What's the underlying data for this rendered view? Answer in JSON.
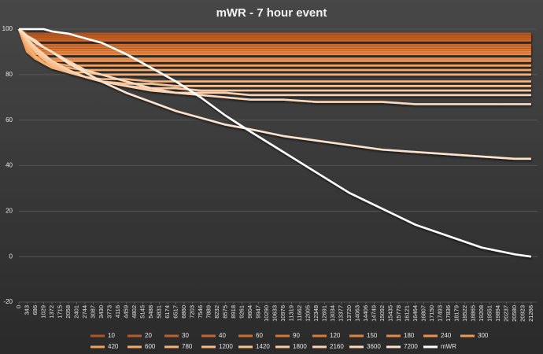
{
  "chart_data": {
    "type": "line",
    "title": "mWR - 7 hour event",
    "x": [
      0,
      343,
      686,
      1029,
      1372,
      2058,
      2744,
      3430,
      4459,
      5488,
      6517,
      7546,
      8575,
      9604,
      10976,
      12348,
      13720,
      15092,
      16464,
      17836,
      19208,
      20580,
      21266
    ],
    "xlim": [
      0,
      21530
    ],
    "xticks": [
      0,
      343,
      686,
      1029,
      1372,
      1715,
      2058,
      2401,
      2744,
      3087,
      3430,
      3773,
      4116,
      4459,
      4802,
      5145,
      5488,
      5831,
      6174,
      6517,
      6860,
      7203,
      7546,
      7889,
      8232,
      8575,
      8918,
      9261,
      9604,
      9947,
      10290,
      10633,
      10976,
      11319,
      11662,
      12005,
      12348,
      12691,
      13034,
      13377,
      13720,
      14063,
      14406,
      14749,
      15092,
      15435,
      15778,
      16121,
      16464,
      16807,
      17150,
      17493,
      17836,
      18179,
      18522,
      18865,
      19208,
      19551,
      19894,
      20237,
      20580,
      20923,
      21266
    ],
    "ylim": [
      -20,
      100
    ],
    "yticks": [
      -20,
      0,
      20,
      40,
      60,
      80,
      100
    ],
    "grid": true,
    "legend": "bottom",
    "series": [
      {
        "name": "10",
        "color": "#b5541c",
        "values": [
          100,
          98,
          98,
          98,
          98,
          98,
          98,
          98,
          98,
          98,
          98,
          98,
          98,
          98,
          98,
          98,
          98,
          98,
          98,
          98,
          98,
          98,
          98
        ]
      },
      {
        "name": "20",
        "color": "#bd5a20",
        "values": [
          100,
          97,
          97,
          97,
          97,
          97,
          97,
          97,
          97,
          97,
          97,
          97,
          97,
          97,
          97,
          97,
          97,
          97,
          97,
          97,
          97,
          97,
          97
        ]
      },
      {
        "name": "30",
        "color": "#c46024",
        "values": [
          100,
          96,
          96,
          96,
          96,
          96,
          96,
          96,
          96,
          96,
          96,
          96,
          96,
          96,
          96,
          96,
          96,
          96,
          96,
          96,
          96,
          96,
          96
        ]
      },
      {
        "name": "40",
        "color": "#cb6628",
        "values": [
          100,
          95,
          95,
          95,
          95,
          95,
          95,
          95,
          95,
          95,
          95,
          95,
          95,
          95,
          95,
          95,
          95,
          95,
          95,
          95,
          95,
          95,
          95
        ]
      },
      {
        "name": "60",
        "color": "#d26c2c",
        "values": [
          100,
          93,
          93,
          93,
          93,
          93,
          93,
          93,
          93,
          93,
          93,
          93,
          93,
          93,
          93,
          93,
          93,
          93,
          93,
          93,
          93,
          93,
          93
        ]
      },
      {
        "name": "90",
        "color": "#d87330",
        "values": [
          100,
          92,
          92,
          92,
          92,
          92,
          92,
          92,
          92,
          92,
          92,
          92,
          92,
          92,
          92,
          92,
          92,
          92,
          92,
          92,
          92,
          92,
          92
        ]
      },
      {
        "name": "120",
        "color": "#de7a35",
        "values": [
          100,
          92,
          91,
          91,
          91,
          91,
          91,
          91,
          91,
          91,
          91,
          91,
          91,
          91,
          91,
          91,
          91,
          91,
          91,
          91,
          91,
          91,
          91
        ]
      },
      {
        "name": "150",
        "color": "#e3813b",
        "values": [
          100,
          91,
          90,
          90,
          90,
          90,
          90,
          90,
          90,
          90,
          90,
          90,
          90,
          90,
          90,
          90,
          90,
          90,
          90,
          90,
          90,
          90,
          90
        ]
      },
      {
        "name": "180",
        "color": "#e88842",
        "values": [
          100,
          91,
          89,
          89,
          89,
          89,
          89,
          89,
          89,
          89,
          89,
          89,
          89,
          89,
          89,
          89,
          89,
          89,
          89,
          89,
          89,
          89,
          89
        ]
      },
      {
        "name": "240",
        "color": "#ec904a",
        "values": [
          100,
          90,
          88,
          87,
          87,
          87,
          87,
          87,
          87,
          87,
          87,
          87,
          87,
          87,
          87,
          87,
          87,
          87,
          87,
          87,
          87,
          87,
          87
        ]
      },
      {
        "name": "300",
        "color": "#ef9853",
        "values": [
          100,
          90,
          87,
          86,
          86,
          86,
          86,
          86,
          86,
          86,
          86,
          86,
          86,
          86,
          86,
          86,
          86,
          86,
          86,
          86,
          86,
          86,
          86
        ]
      },
      {
        "name": "420",
        "color": "#f1a05e",
        "values": [
          100,
          91,
          87,
          85,
          85,
          84,
          84,
          84,
          84,
          84,
          84,
          84,
          84,
          84,
          84,
          84,
          84,
          84,
          84,
          84,
          84,
          84,
          84
        ]
      },
      {
        "name": "600",
        "color": "#f3a96a",
        "values": [
          100,
          92,
          88,
          85,
          84,
          83,
          82,
          82,
          82,
          82,
          82,
          82,
          82,
          82,
          82,
          82,
          82,
          82,
          82,
          82,
          82,
          82,
          82
        ]
      },
      {
        "name": "780",
        "color": "#f5b177",
        "values": [
          100,
          93,
          88,
          85,
          83,
          81,
          81,
          80,
          80,
          80,
          80,
          80,
          80,
          80,
          80,
          80,
          80,
          80,
          80,
          80,
          80,
          80,
          80
        ]
      },
      {
        "name": "1200",
        "color": "#f6b984",
        "values": [
          100,
          94,
          90,
          87,
          84,
          81,
          79,
          78,
          78,
          77,
          77,
          77,
          77,
          77,
          77,
          77,
          77,
          77,
          77,
          77,
          77,
          77,
          77
        ]
      },
      {
        "name": "1420",
        "color": "#f8c192",
        "values": [
          100,
          95,
          90,
          87,
          85,
          81,
          79,
          77,
          76,
          76,
          75,
          75,
          75,
          75,
          75,
          75,
          75,
          75,
          75,
          75,
          75,
          75,
          75
        ]
      },
      {
        "name": "1800",
        "color": "#f9c9a0",
        "values": [
          100,
          95,
          91,
          88,
          86,
          82,
          79,
          77,
          75,
          74,
          74,
          73,
          73,
          73,
          73,
          73,
          73,
          73,
          73,
          73,
          73,
          73,
          73
        ]
      },
      {
        "name": "2160",
        "color": "#fad1ae",
        "values": [
          100,
          96,
          92,
          89,
          86,
          82,
          79,
          77,
          75,
          73,
          72,
          72,
          72,
          71,
          71,
          71,
          71,
          71,
          71,
          71,
          71,
          71,
          71
        ]
      },
      {
        "name": "3600",
        "color": "#fcd9bd",
        "values": [
          100,
          97,
          94,
          92,
          90,
          86,
          82,
          80,
          77,
          74,
          72,
          71,
          70,
          69,
          69,
          68,
          68,
          68,
          67,
          67,
          67,
          67,
          67
        ]
      },
      {
        "name": "7200",
        "color": "#fde2cd",
        "values": [
          100,
          97,
          95,
          92,
          90,
          85,
          81,
          77,
          72,
          68,
          64,
          61,
          58,
          56,
          53,
          51,
          49,
          47,
          46,
          45,
          44,
          43,
          43
        ]
      },
      {
        "name": "mWR",
        "color": "#ffffff",
        "values": [
          100,
          100,
          100,
          100,
          99,
          98,
          96,
          94,
          89,
          83,
          77,
          70,
          62,
          55,
          46,
          37,
          28,
          21,
          14,
          9,
          4,
          1,
          0
        ]
      }
    ]
  }
}
